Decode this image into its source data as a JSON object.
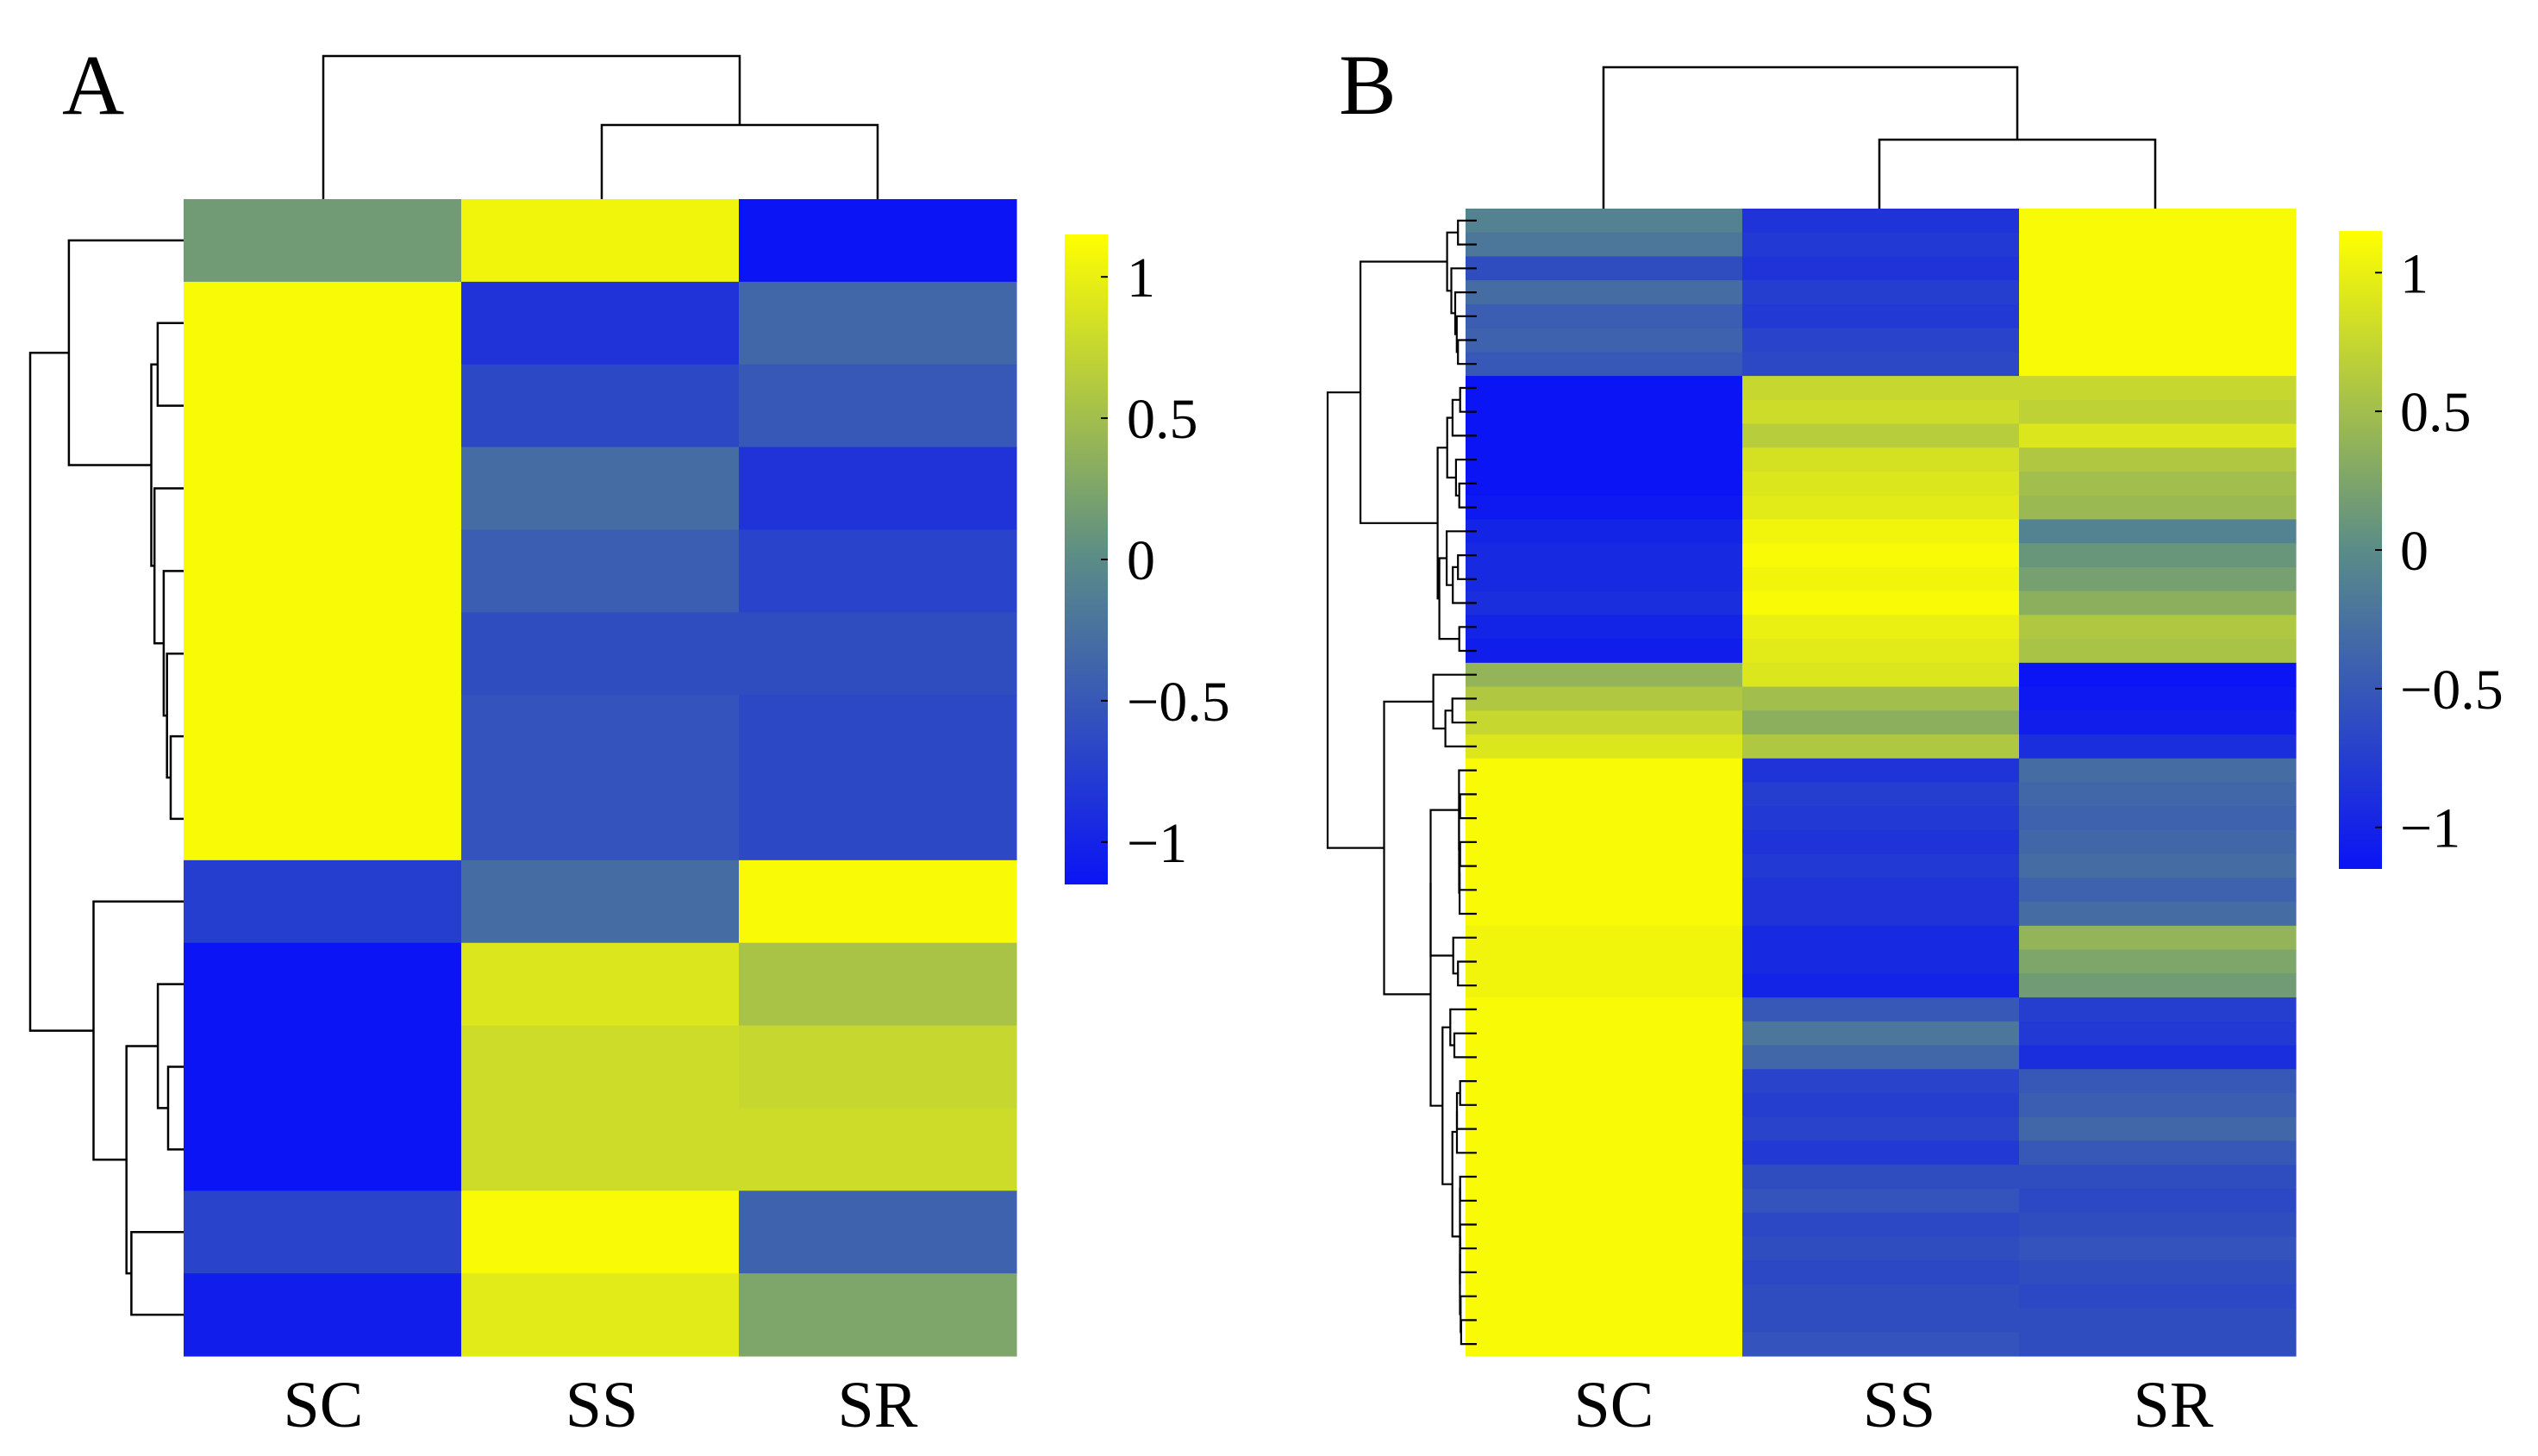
{
  "chart_data": [
    {
      "type": "heatmap",
      "panel_label": "A",
      "columns": [
        "SC",
        "SS",
        "SR"
      ],
      "values": [
        [
          0.15,
          1.05,
          -1.15
        ],
        [
          1.1,
          -0.85,
          -0.35
        ],
        [
          1.1,
          -0.65,
          -0.5
        ],
        [
          1.1,
          -0.3,
          -0.85
        ],
        [
          1.1,
          -0.45,
          -0.7
        ],
        [
          1.1,
          -0.6,
          -0.6
        ],
        [
          1.1,
          -0.55,
          -0.65
        ],
        [
          1.1,
          -0.55,
          -0.65
        ],
        [
          -0.75,
          -0.3,
          1.1
        ],
        [
          -1.15,
          0.9,
          0.55
        ],
        [
          -1.15,
          0.8,
          0.75
        ],
        [
          -1.15,
          0.8,
          0.8
        ],
        [
          -0.7,
          1.1,
          -0.4
        ],
        [
          -1.05,
          0.95,
          0.25
        ]
      ],
      "colorbar": {
        "min": -1.15,
        "max": 1.15,
        "ticks": [
          1,
          0.5,
          0,
          -0.5,
          -1
        ],
        "tick_labels": [
          "1",
          "0.5",
          "0",
          "−0.5",
          "−1"
        ]
      },
      "colors": {
        "low": "#0a14f5",
        "mid": "#5a8c87",
        "high": "#ffff00"
      }
    },
    {
      "type": "heatmap",
      "panel_label": "B",
      "columns": [
        "SC",
        "SS",
        "SR"
      ],
      "values": [
        [
          -0.1,
          -0.85,
          1.1
        ],
        [
          -0.2,
          -0.8,
          1.1
        ],
        [
          -0.6,
          -0.85,
          1.1
        ],
        [
          -0.3,
          -0.75,
          1.1
        ],
        [
          -0.45,
          -0.8,
          1.1
        ],
        [
          -0.4,
          -0.7,
          1.1
        ],
        [
          -0.5,
          -0.65,
          1.1
        ],
        [
          -1.15,
          0.75,
          0.75
        ],
        [
          -1.15,
          0.8,
          0.7
        ],
        [
          -1.15,
          0.65,
          0.9
        ],
        [
          -1.15,
          0.85,
          0.6
        ],
        [
          -1.15,
          0.9,
          0.5
        ],
        [
          -1.1,
          0.95,
          0.45
        ],
        [
          -1.0,
          1.05,
          -0.1
        ],
        [
          -0.95,
          1.1,
          0.1
        ],
        [
          -0.95,
          1.05,
          0.2
        ],
        [
          -0.9,
          1.1,
          0.35
        ],
        [
          -1.0,
          1.0,
          0.6
        ],
        [
          -1.05,
          0.95,
          0.55
        ],
        [
          0.4,
          0.9,
          -1.15
        ],
        [
          0.6,
          0.5,
          -1.1
        ],
        [
          0.75,
          0.35,
          -1.05
        ],
        [
          0.9,
          0.6,
          -0.9
        ],
        [
          1.1,
          -0.85,
          -0.3
        ],
        [
          1.1,
          -0.75,
          -0.35
        ],
        [
          1.1,
          -0.8,
          -0.4
        ],
        [
          1.1,
          -0.85,
          -0.35
        ],
        [
          1.1,
          -0.8,
          -0.3
        ],
        [
          1.1,
          -0.85,
          -0.4
        ],
        [
          1.1,
          -0.85,
          -0.3
        ],
        [
          1.05,
          -0.95,
          0.4
        ],
        [
          1.05,
          -0.95,
          0.25
        ],
        [
          1.05,
          -1.0,
          0.15
        ],
        [
          1.1,
          -0.5,
          -0.75
        ],
        [
          1.1,
          -0.2,
          -0.8
        ],
        [
          1.1,
          -0.35,
          -0.9
        ],
        [
          1.1,
          -0.7,
          -0.5
        ],
        [
          1.1,
          -0.75,
          -0.45
        ],
        [
          1.1,
          -0.7,
          -0.35
        ],
        [
          1.1,
          -0.8,
          -0.5
        ],
        [
          1.1,
          -0.6,
          -0.6
        ],
        [
          1.1,
          -0.55,
          -0.65
        ],
        [
          1.1,
          -0.65,
          -0.6
        ],
        [
          1.1,
          -0.6,
          -0.55
        ],
        [
          1.1,
          -0.65,
          -0.6
        ],
        [
          1.1,
          -0.6,
          -0.65
        ],
        [
          1.1,
          -0.6,
          -0.6
        ],
        [
          1.1,
          -0.55,
          -0.6
        ]
      ],
      "colorbar": {
        "min": -1.15,
        "max": 1.15,
        "ticks": [
          1,
          0.5,
          0,
          -0.5,
          -1
        ],
        "tick_labels": [
          "1",
          "0.5",
          "0",
          "−0.5",
          "−1"
        ]
      },
      "colors": {
        "low": "#0a14f5",
        "mid": "#5a8c87",
        "high": "#ffff00"
      }
    }
  ]
}
